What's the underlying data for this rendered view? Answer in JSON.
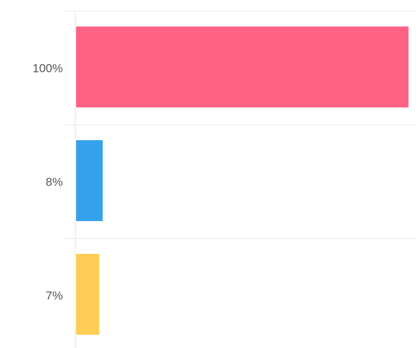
{
  "chart_data": {
    "type": "bar",
    "orientation": "horizontal",
    "categories": [
      "100%",
      "8%",
      "7%"
    ],
    "values": [
      100,
      8,
      7
    ],
    "xlim": [
      0,
      100
    ],
    "colors": [
      "#ff6384",
      "#36a2eb",
      "#ffcd56"
    ],
    "grid": true,
    "legend": "none",
    "title": "",
    "xlabel": "",
    "ylabel": ""
  }
}
